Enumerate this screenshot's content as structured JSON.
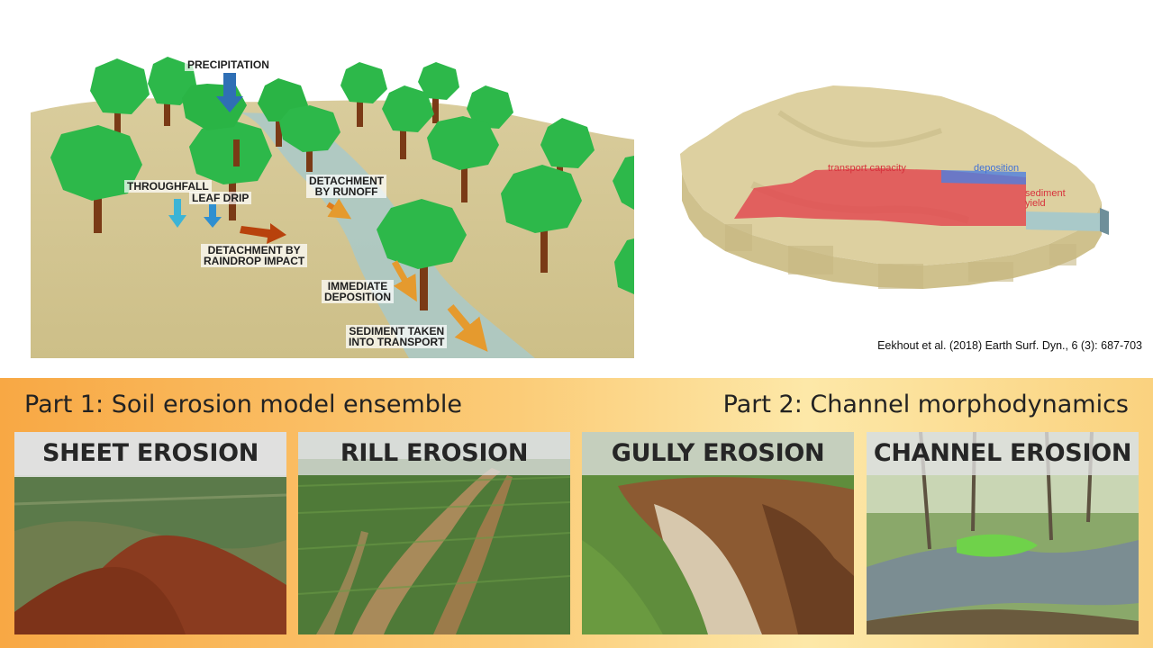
{
  "diagram": {
    "labels": {
      "precipitation": "PRECIPITATION",
      "throughfall": "THROUGHFALL",
      "leaf_drip": "LEAF DRIP",
      "detachment_runoff_1": "DETACHMENT",
      "detachment_runoff_2": "BY RUNOFF",
      "detachment_raindrop_1": "DETACHMENT BY",
      "detachment_raindrop_2": "RAINDROP IMPACT",
      "immediate_deposition_1": "IMMEDIATE",
      "immediate_deposition_2": "DEPOSITION",
      "sediment_transport_1": "SEDIMENT TAKEN",
      "sediment_transport_2": "INTO TRANSPORT"
    }
  },
  "model": {
    "labels": {
      "transport_capacity": "transport capacity",
      "deposition": "deposition",
      "sediment_yield_1": "sediment",
      "sediment_yield_2": "yield"
    },
    "citation": "Eekhout et al. (2018) Earth Surf. Dyn., 6 (3): 687-703"
  },
  "band": {
    "part1": "Part 1: Soil erosion model ensemble",
    "part2": "Part 2: Channel morphodynamics"
  },
  "photos": [
    {
      "title": "SHEET EROSION"
    },
    {
      "title": "RILL EROSION"
    },
    {
      "title": "GULLY EROSION"
    },
    {
      "title": "CHANNEL EROSION"
    }
  ],
  "colors": {
    "soil": "#d6c896",
    "tree": "#2db84a",
    "trunk": "#7a3a16",
    "water": "#a9c9c9",
    "arrow_blue": "#2f6fb5",
    "arrow_cyan": "#3cb4d6",
    "arrow_red": "#b8420c",
    "arrow_orange": "#e59a2e",
    "transport_red": "#e2474f",
    "deposition_blue": "#4d7ee0"
  }
}
